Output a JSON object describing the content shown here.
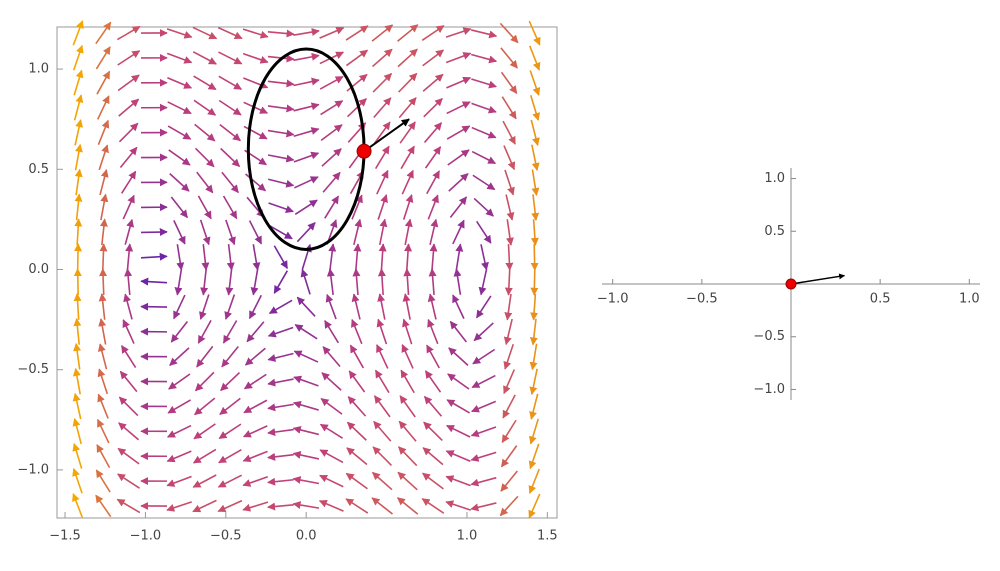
{
  "chart_data": [
    {
      "type": "vector-field",
      "xlim": [
        -1.55,
        1.56
      ],
      "ylim": [
        -1.24,
        1.21
      ],
      "xticks": [
        {
          "value": -1.5,
          "label": "−1.5"
        },
        {
          "value": -1,
          "label": "−1.0"
        },
        {
          "value": -0.5,
          "label": "−0.5"
        },
        {
          "value": 0,
          "label": "0.0"
        },
        {
          "value": 1,
          "label": "1.0"
        },
        1.5
      ],
      "yticks": [
        {
          "value": -1,
          "label": "−1.0"
        },
        {
          "value": -0.5,
          "label": "−0.5"
        },
        {
          "value": 0,
          "label": "0.0"
        },
        0.5,
        {
          "value": 1,
          "label": "1.0"
        }
      ],
      "ellipse": {
        "cx": 0,
        "cy": 0.6,
        "rx": 0.36,
        "ry": 0.5
      },
      "point": {
        "x": 0.36,
        "y": 0.59,
        "dx": 0.28,
        "dy": 0.16
      }
    },
    {
      "type": "vector",
      "xlim": [
        -1.06,
        1.06
      ],
      "ylim": [
        -1.1,
        1.1
      ],
      "xticks": [
        {
          "value": -1,
          "label": "−1.0"
        },
        {
          "value": -0.5,
          "label": "−0.5"
        },
        0.5,
        {
          "value": 1,
          "label": "1.0"
        }
      ],
      "yticks": [
        {
          "value": -1,
          "label": "−1.0"
        },
        {
          "value": -0.5,
          "label": "−0.5"
        },
        0.5,
        {
          "value": 1,
          "label": "1.0"
        }
      ],
      "point": {
        "x": 0,
        "y": 0,
        "dx": 0.3,
        "dy": 0.08
      }
    }
  ]
}
